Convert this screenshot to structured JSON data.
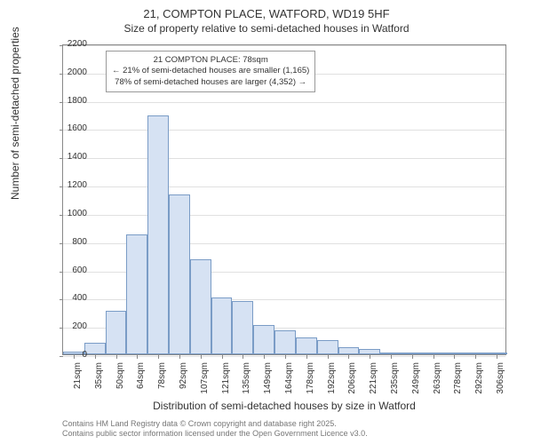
{
  "title_main": "21, COMPTON PLACE, WATFORD, WD19 5HF",
  "title_sub": "Size of property relative to semi-detached houses in Watford",
  "y_label": "Number of semi-detached properties",
  "x_label": "Distribution of semi-detached houses by size in Watford",
  "chart": {
    "type": "histogram",
    "ylim": [
      0,
      2200
    ],
    "ytick_step": 200,
    "y_ticks": [
      0,
      200,
      400,
      600,
      800,
      1000,
      1200,
      1400,
      1600,
      1800,
      2000,
      2200
    ],
    "x_categories": [
      "21sqm",
      "35sqm",
      "50sqm",
      "64sqm",
      "78sqm",
      "92sqm",
      "107sqm",
      "121sqm",
      "135sqm",
      "149sqm",
      "164sqm",
      "178sqm",
      "192sqm",
      "206sqm",
      "221sqm",
      "235sqm",
      "249sqm",
      "263sqm",
      "278sqm",
      "292sqm",
      "306sqm"
    ],
    "values": [
      20,
      80,
      310,
      850,
      1690,
      1130,
      670,
      400,
      380,
      210,
      170,
      120,
      100,
      50,
      40,
      10,
      5,
      5,
      5,
      10,
      5
    ],
    "bar_color": "#d6e2f3",
    "bar_border_color": "#7a9cc6",
    "background_color": "#ffffff",
    "grid_color": "#e0e0e0",
    "axis_color": "#888888",
    "bar_width": 1.0,
    "title_fontsize": 13,
    "subtitle_fontsize": 12,
    "label_fontsize": 12,
    "tick_fontsize": 10
  },
  "annotation": {
    "line1": "21 COMPTON PLACE: 78sqm",
    "line2": "← 21% of semi-detached houses are smaller (1,165)",
    "line3": "78% of semi-detached houses are larger (4,352) →"
  },
  "attribution": {
    "line1": "Contains HM Land Registry data © Crown copyright and database right 2025.",
    "line2": "Contains public sector information licensed under the Open Government Licence v3.0."
  }
}
